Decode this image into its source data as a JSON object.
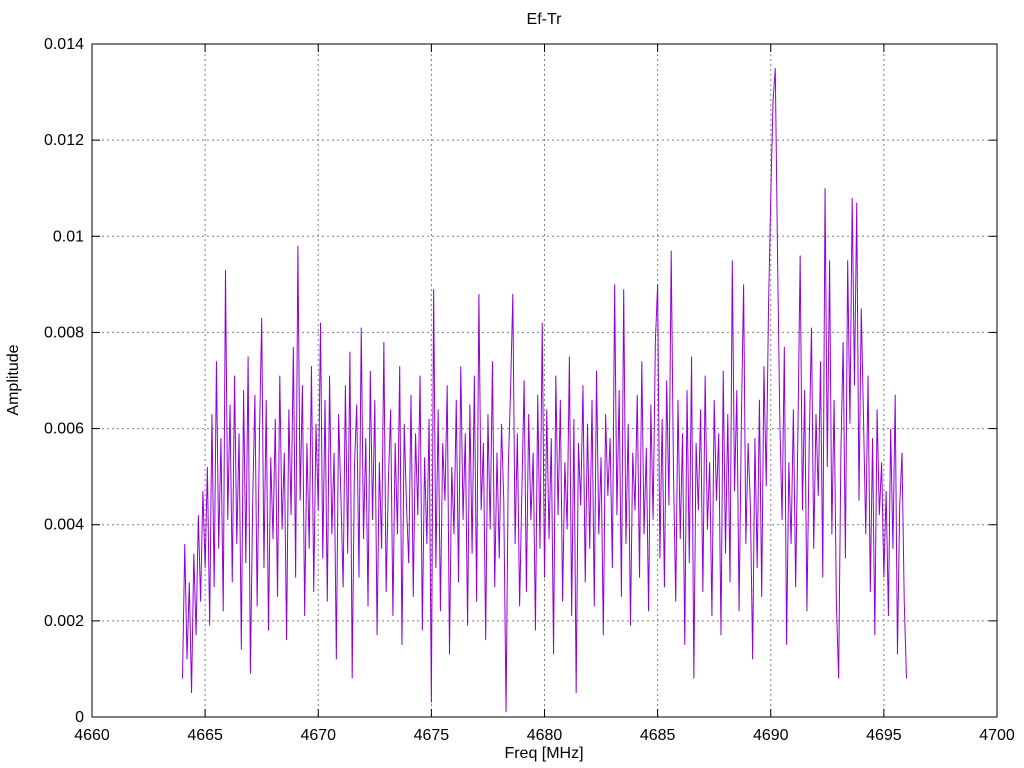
{
  "window": {
    "background_color": "#ffffff"
  },
  "chart_data": {
    "type": "line",
    "title": "Ef-Tr",
    "xlabel": "Freq [MHz]",
    "ylabel": "Amplitude",
    "xlim": [
      4660,
      4700
    ],
    "ylim": [
      0,
      0.014
    ],
    "xticks": [
      4660,
      4665,
      4670,
      4675,
      4680,
      4685,
      4690,
      4695,
      4700
    ],
    "xtick_labels": [
      "4660",
      "4665",
      "4670",
      "4675",
      "4680",
      "4685",
      "4690",
      "4695",
      "4700"
    ],
    "yticks": [
      0,
      0.002,
      0.004,
      0.006,
      0.008,
      0.01,
      0.012,
      0.014
    ],
    "ytick_labels": [
      "0",
      "0.002",
      "0.004",
      "0.006",
      "0.008",
      "0.01",
      "0.012",
      "0.014"
    ],
    "grid": true,
    "grid_style": "dotted",
    "grid_color": "#808080",
    "legend": "none",
    "line_color": "#9400d3",
    "series": [
      {
        "name": "Ef-Tr amplitude",
        "x_start": 4664.0,
        "x_step": 0.1,
        "values": [
          0.0008,
          0.0036,
          0.0012,
          0.0028,
          0.0005,
          0.0034,
          0.0017,
          0.0042,
          0.0024,
          0.0047,
          0.0031,
          0.0052,
          0.0019,
          0.0063,
          0.0027,
          0.0074,
          0.0035,
          0.0058,
          0.0022,
          0.0093,
          0.0041,
          0.0065,
          0.0028,
          0.0071,
          0.0036,
          0.0059,
          0.0014,
          0.0068,
          0.0032,
          0.0075,
          0.0009,
          0.0044,
          0.0067,
          0.0023,
          0.0058,
          0.0083,
          0.0031,
          0.0066,
          0.0018,
          0.0054,
          0.0037,
          0.0062,
          0.0025,
          0.0071,
          0.0039,
          0.0055,
          0.0016,
          0.0064,
          0.0042,
          0.0077,
          0.0029,
          0.0098,
          0.0045,
          0.0069,
          0.0021,
          0.0057,
          0.0035,
          0.0073,
          0.0026,
          0.0061,
          0.0043,
          0.0082,
          0.0033,
          0.0066,
          0.0024,
          0.0071,
          0.0038,
          0.0055,
          0.0012,
          0.0063,
          0.0046,
          0.0027,
          0.0069,
          0.0034,
          0.0076,
          0.0008,
          0.0052,
          0.0065,
          0.0029,
          0.0081,
          0.0037,
          0.0058,
          0.0023,
          0.0072,
          0.0041,
          0.0066,
          0.0017,
          0.0053,
          0.0035,
          0.0078,
          0.0026,
          0.0049,
          0.0064,
          0.0021,
          0.0057,
          0.0038,
          0.0073,
          0.0015,
          0.0061,
          0.0044,
          0.0032,
          0.0067,
          0.0025,
          0.0059,
          0.0042,
          0.0071,
          0.0018,
          0.0054,
          0.0036,
          0.0062,
          0.0003,
          0.0089,
          0.0031,
          0.0064,
          0.0022,
          0.0057,
          0.0045,
          0.0069,
          0.0013,
          0.0052,
          0.0038,
          0.0066,
          0.0028,
          0.0073,
          0.0041,
          0.0059,
          0.0019,
          0.0065,
          0.0034,
          0.0071,
          0.0024,
          0.0088,
          0.0043,
          0.0057,
          0.0016,
          0.0063,
          0.0039,
          0.0074,
          0.0027,
          0.0055,
          0.0033,
          0.0061,
          0.0045,
          0.0001,
          0.0052,
          0.0068,
          0.0088,
          0.0036,
          0.0059,
          0.0023,
          0.0047,
          0.007,
          0.0026,
          0.0063,
          0.0041,
          0.0055,
          0.0018,
          0.0067,
          0.0035,
          0.0082,
          0.0029,
          0.0064,
          0.0037,
          0.0058,
          0.0013,
          0.0071,
          0.0042,
          0.0066,
          0.0024,
          0.0053,
          0.0039,
          0.0075,
          0.0021,
          0.0062,
          0.0005,
          0.0057,
          0.0044,
          0.0069,
          0.0028,
          0.0061,
          0.0035,
          0.0066,
          0.0023,
          0.0072,
          0.0038,
          0.0054,
          0.0017,
          0.0063,
          0.0046,
          0.0058,
          0.0031,
          0.009,
          0.0042,
          0.0068,
          0.0025,
          0.0089,
          0.0036,
          0.0061,
          0.0019,
          0.0055,
          0.0043,
          0.0067,
          0.0029,
          0.0074,
          0.0038,
          0.0056,
          0.0022,
          0.0065,
          0.0041,
          0.0078,
          0.009,
          0.0033,
          0.0062,
          0.0027,
          0.007,
          0.0044,
          0.0097,
          0.0051,
          0.0024,
          0.0066,
          0.0037,
          0.0059,
          0.0015,
          0.0068,
          0.0032,
          0.0075,
          0.0008,
          0.0057,
          0.0043,
          0.0064,
          0.0026,
          0.0071,
          0.0039,
          0.0053,
          0.0021,
          0.0066,
          0.0045,
          0.0059,
          0.0017,
          0.0072,
          0.0034,
          0.0063,
          0.0028,
          0.0095,
          0.0047,
          0.0068,
          0.0022,
          0.0061,
          0.009,
          0.0036,
          0.0057,
          0.0044,
          0.0012,
          0.0058,
          0.0031,
          0.0066,
          0.0025,
          0.0073,
          0.0048,
          0.0085,
          0.0108,
          0.0128,
          0.0135,
          0.0096,
          0.0062,
          0.0041,
          0.0077,
          0.0015,
          0.0053,
          0.0036,
          0.0064,
          0.0027,
          0.0059,
          0.0096,
          0.0043,
          0.0068,
          0.0022,
          0.0057,
          0.0081,
          0.0035,
          0.0063,
          0.0046,
          0.0074,
          0.0029,
          0.011,
          0.0052,
          0.0095,
          0.0038,
          0.0066,
          0.0024,
          0.0008,
          0.0055,
          0.0078,
          0.0033,
          0.0095,
          0.0061,
          0.0108,
          0.0069,
          0.0107,
          0.0045,
          0.0085,
          0.0062,
          0.0038,
          0.0071,
          0.0026,
          0.0058,
          0.0017,
          0.0064,
          0.0042,
          0.0053,
          0.0029,
          0.0047,
          0.0021,
          0.006,
          0.0035,
          0.0067,
          0.0013,
          0.0044,
          0.0055,
          0.0024,
          0.0008
        ]
      }
    ]
  }
}
